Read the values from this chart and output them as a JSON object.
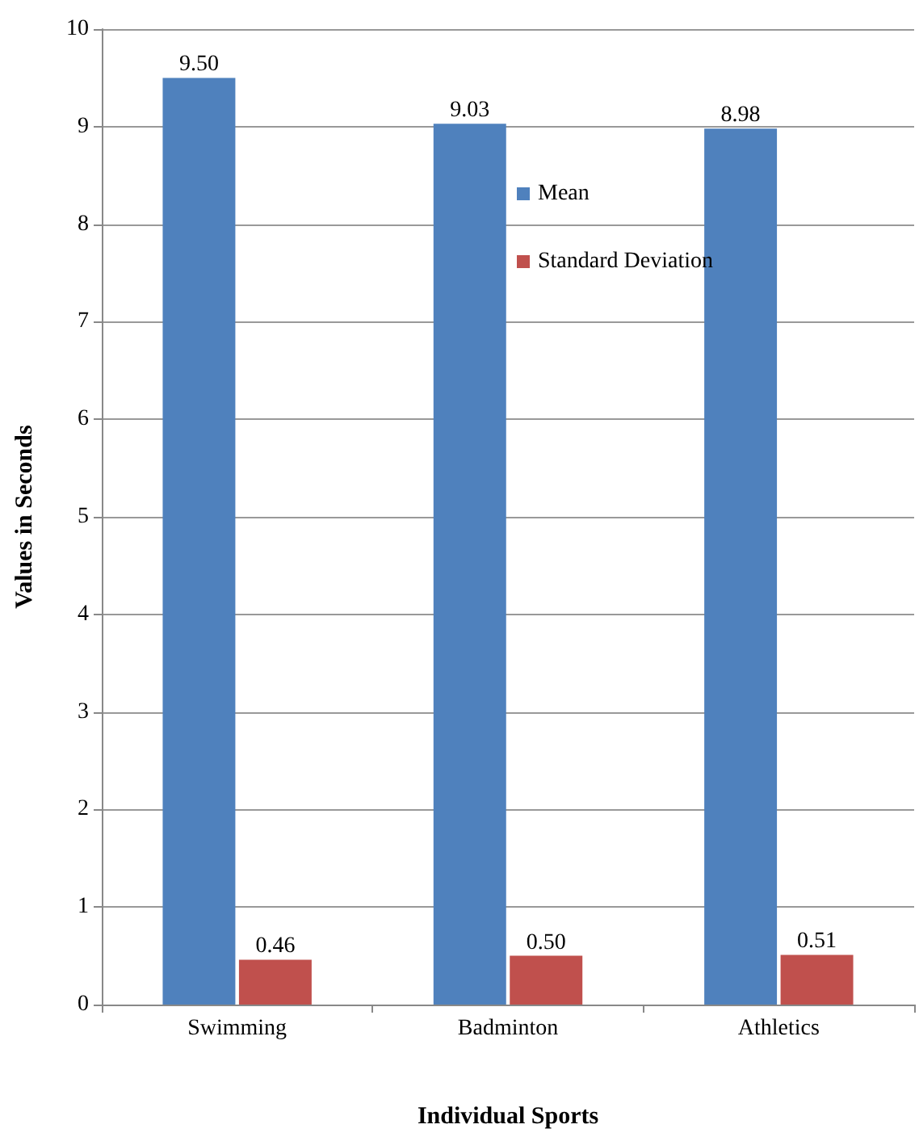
{
  "chart_data": {
    "type": "bar",
    "xlabel": "Individual Sports",
    "ylabel": "Values in Seconds",
    "categories": [
      "Swimming",
      "Badminton",
      "Athletics"
    ],
    "series": [
      {
        "name": "Mean",
        "color": "#4f81bd",
        "values": [
          9.5,
          9.03,
          8.98
        ],
        "value_labels": [
          "9.50",
          "9.03",
          "8.98"
        ]
      },
      {
        "name": "Standard Deviation",
        "color": "#c0504d",
        "values": [
          0.46,
          0.5,
          0.51
        ],
        "value_labels": [
          "0.46",
          "0.50",
          "0.51"
        ]
      }
    ],
    "ylim": [
      0,
      10
    ],
    "yticks": [
      0,
      1,
      2,
      3,
      4,
      5,
      6,
      7,
      8,
      9,
      10
    ],
    "grid": "y",
    "legend": "top right"
  }
}
